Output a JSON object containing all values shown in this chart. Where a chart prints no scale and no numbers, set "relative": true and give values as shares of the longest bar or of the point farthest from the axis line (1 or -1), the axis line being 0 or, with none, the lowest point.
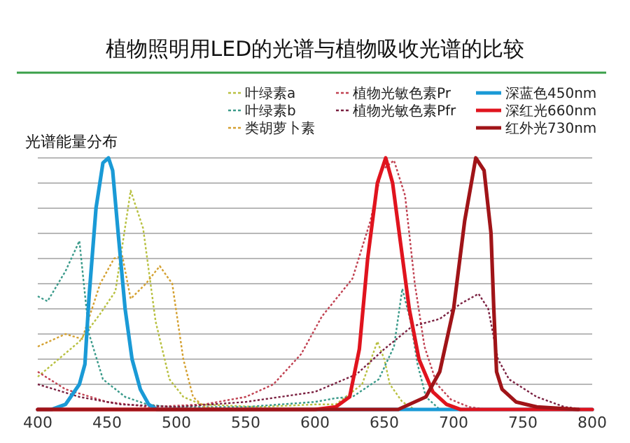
{
  "chart_data": {
    "type": "line",
    "title": "植物照明用LED的光谱与植物吸收光谱的比较",
    "ylabel": "光谱能量分布",
    "relative": true,
    "xlim": [
      400,
      800
    ],
    "xticks": [
      400,
      450,
      500,
      550,
      600,
      650,
      700,
      750,
      800
    ],
    "grid": "y",
    "legend": "top right",
    "series": [
      {
        "name": "叶绿素a",
        "color": "#b8c040",
        "line_style": "dotted",
        "x": [
          400,
          430,
          445,
          456,
          467,
          476,
          485,
          495,
          505,
          518,
          560,
          600,
          615,
          634,
          645,
          650,
          654,
          663,
          672,
          700
        ],
        "values": [
          0.13,
          0.27,
          0.38,
          0.47,
          0.87,
          0.72,
          0.35,
          0.12,
          0.05,
          0.02,
          0.01,
          0.02,
          0.02,
          0.1,
          0.27,
          0.2,
          0.1,
          0.03,
          0,
          0
        ]
      },
      {
        "name": "叶绿素b",
        "color": "#3a9a8a",
        "line_style": "dotted",
        "x": [
          400,
          407,
          420,
          430,
          437,
          447,
          463,
          479,
          495,
          550,
          600,
          615,
          627,
          646,
          657,
          663,
          669,
          674,
          680,
          690
        ],
        "values": [
          0.45,
          0.43,
          0.55,
          0.67,
          0.3,
          0.12,
          0.05,
          0.02,
          0.01,
          0.01,
          0.03,
          0.045,
          0.05,
          0.12,
          0.25,
          0.48,
          0.35,
          0.18,
          0.05,
          0
        ]
      },
      {
        "name": "类胡萝卜素",
        "color": "#d4a030",
        "line_style": "dotted",
        "x": [
          400,
          420,
          432,
          445,
          455,
          461,
          467,
          478,
          488,
          497,
          505,
          512,
          520,
          540
        ],
        "values": [
          0.25,
          0.3,
          0.28,
          0.5,
          0.6,
          0.61,
          0.44,
          0.5,
          0.57,
          0.5,
          0.2,
          0.05,
          0.01,
          0
        ]
      },
      {
        "name": "植物光敏色素Pr",
        "color": "#c04050",
        "line_style": "dotted",
        "x": [
          400,
          420,
          450,
          480,
          520,
          550,
          570,
          590,
          605,
          627,
          640,
          648,
          657,
          665,
          672,
          679,
          688,
          698,
          711,
          724
        ],
        "values": [
          0.15,
          0.08,
          0.03,
          0.01,
          0.02,
          0.05,
          0.1,
          0.22,
          0.37,
          0.52,
          0.75,
          0.95,
          0.99,
          0.85,
          0.5,
          0.25,
          0.1,
          0.04,
          0.01,
          0
        ]
      },
      {
        "name": "植物光敏色素Pfr",
        "color": "#7a2040",
        "line_style": "dotted",
        "x": [
          400,
          430,
          460,
          500,
          550,
          600,
          630,
          650,
          670,
          690,
          705,
          718,
          725,
          732,
          740,
          760,
          780,
          795
        ],
        "values": [
          0.1,
          0.05,
          0.02,
          0.01,
          0.03,
          0.07,
          0.14,
          0.24,
          0.33,
          0.36,
          0.42,
          0.46,
          0.4,
          0.2,
          0.12,
          0.05,
          0.01,
          0
        ]
      },
      {
        "name": "深蓝色450nm",
        "color": "#1a9ad6",
        "line_style": "solid",
        "x": [
          400,
          410,
          420,
          430,
          434,
          437,
          442,
          447,
          451,
          454,
          458,
          463,
          468,
          474,
          480,
          486,
          800
        ],
        "values": [
          0,
          0,
          0.02,
          0.1,
          0.18,
          0.45,
          0.8,
          0.98,
          1.0,
          0.95,
          0.7,
          0.4,
          0.2,
          0.08,
          0.02,
          0,
          0
        ]
      },
      {
        "name": "深红光660nm",
        "color": "#e0141e",
        "line_style": "solid",
        "x": [
          400,
          600,
          615,
          625,
          632,
          638,
          645,
          651,
          656,
          662,
          668,
          675,
          685,
          695,
          705,
          800
        ],
        "values": [
          0,
          0,
          0.01,
          0.05,
          0.24,
          0.6,
          0.9,
          1.0,
          0.9,
          0.65,
          0.4,
          0.2,
          0.07,
          0.02,
          0,
          0
        ]
      },
      {
        "name": "红外光730nm",
        "color": "#a01418",
        "line_style": "solid",
        "x": [
          400,
          660,
          680,
          690,
          700,
          708,
          716,
          722,
          727,
          729,
          731,
          735,
          745,
          760,
          790
        ],
        "values": [
          0,
          0,
          0.05,
          0.15,
          0.4,
          0.75,
          1.0,
          0.95,
          0.7,
          0.4,
          0.15,
          0.08,
          0.03,
          0.01,
          0
        ]
      }
    ]
  }
}
